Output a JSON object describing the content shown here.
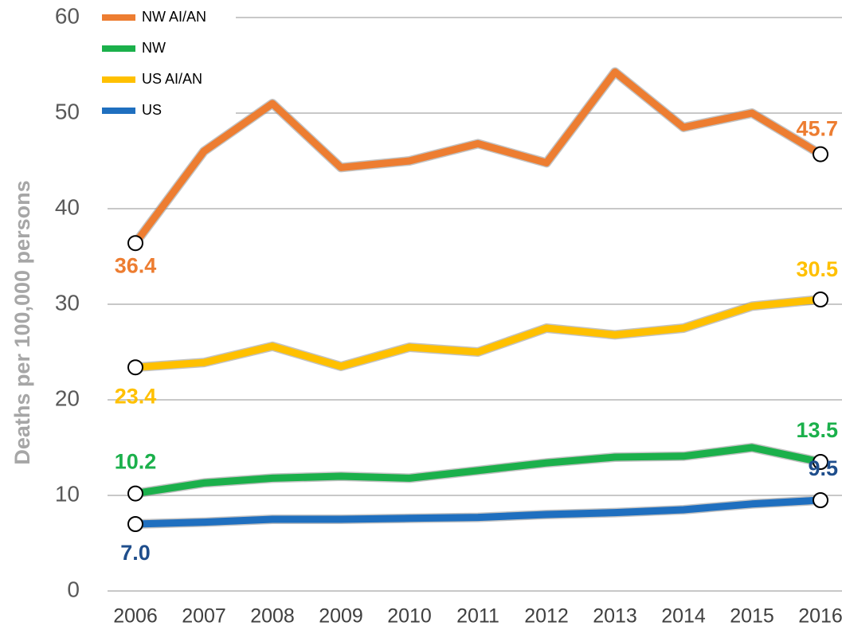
{
  "chart_data": {
    "type": "line",
    "y_label": "Deaths per 100,000 persons",
    "categories": [
      "2006",
      "2007",
      "2008",
      "2009",
      "2010",
      "2011",
      "2012",
      "2013",
      "2014",
      "2015",
      "2016"
    ],
    "ylim": [
      0,
      60
    ],
    "yticks": [
      0,
      10,
      20,
      30,
      40,
      50,
      60
    ],
    "grid": true,
    "legend": "upper left",
    "series": [
      {
        "name": "NW AI/AN",
        "color": "#ed7d31",
        "values": [
          36.4,
          46,
          51,
          44.3,
          45,
          46.8,
          44.8,
          54.3,
          48.5,
          50,
          45.7
        ],
        "value_labels": [
          "36.4",
          null,
          null,
          null,
          null,
          null,
          null,
          null,
          null,
          null,
          "45.7"
        ]
      },
      {
        "name": "NW",
        "color": "#1bb04b",
        "values": [
          10.2,
          11.3,
          11.8,
          12,
          11.8,
          12.6,
          13.4,
          14,
          14.1,
          15,
          13.5
        ],
        "value_labels": [
          "10.2",
          null,
          null,
          null,
          null,
          null,
          null,
          null,
          null,
          null,
          "13.5"
        ]
      },
      {
        "name": "US AI/AN",
        "color": "#ffc000",
        "values": [
          23.4,
          23.9,
          25.6,
          23.5,
          25.5,
          25,
          27.5,
          26.8,
          27.5,
          29.8,
          30.5
        ],
        "value_labels": [
          "23.4",
          null,
          null,
          null,
          null,
          null,
          null,
          null,
          null,
          null,
          "30.5"
        ]
      },
      {
        "name": "US",
        "color": "#1f6fbf",
        "label_color": "#1f4e8c",
        "values": [
          7,
          7.2,
          7.5,
          7.5,
          7.6,
          7.7,
          8,
          8.2,
          8.5,
          9.1,
          9.5
        ],
        "value_labels": [
          "7.0",
          null,
          null,
          null,
          null,
          null,
          null,
          null,
          null,
          null,
          "9.5"
        ]
      }
    ]
  }
}
